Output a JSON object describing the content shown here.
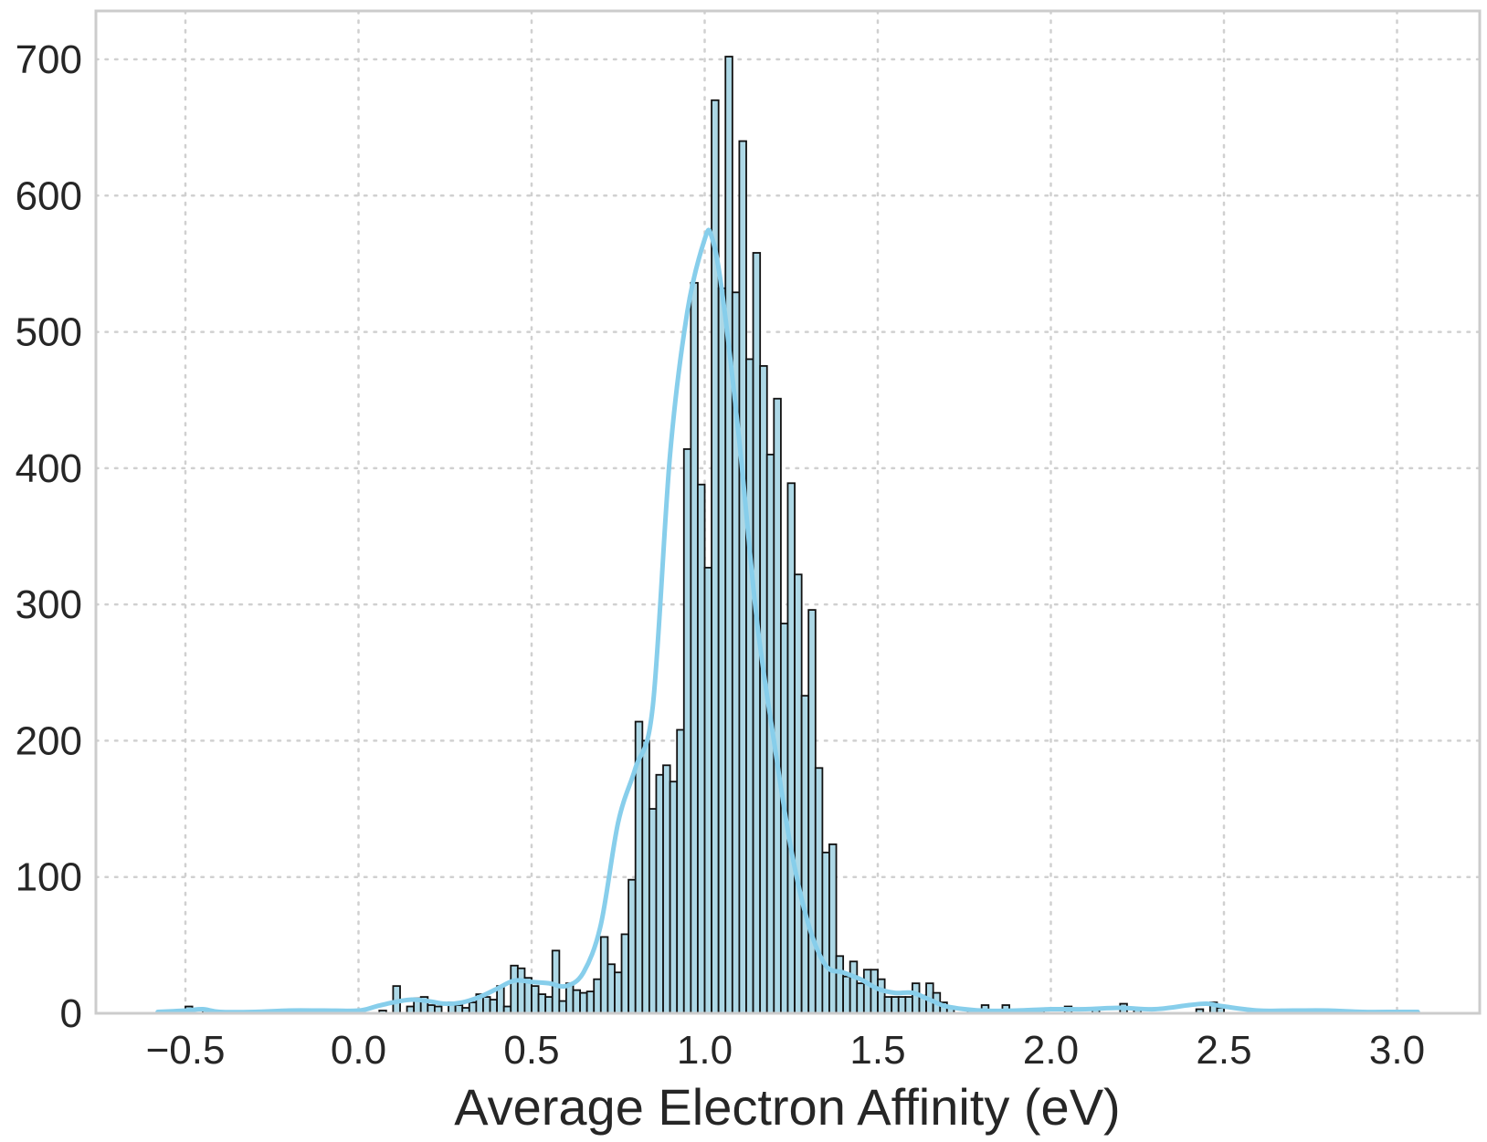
{
  "chart_data": {
    "type": "histogram",
    "xlabel": "Average Electron Affinity (eV)",
    "ylabel": "",
    "xlim": [
      -0.6,
      3.1
    ],
    "ylim": [
      0,
      700
    ],
    "xticks": [
      "−0.5",
      "0.0",
      "0.5",
      "1.0",
      "1.5",
      "2.0",
      "2.5",
      "3.0"
    ],
    "xtick_values": [
      -0.5,
      0.0,
      0.5,
      1.0,
      1.5,
      2.0,
      2.5,
      3.0
    ],
    "yticks": [
      "0",
      "100",
      "200",
      "300",
      "400",
      "500",
      "600",
      "700"
    ],
    "ytick_values": [
      0,
      100,
      200,
      300,
      400,
      500,
      600,
      700
    ],
    "grid": true,
    "bin_width": 0.0201,
    "bins": [
      {
        "x": -0.5,
        "count": 5
      },
      {
        "x": -0.45,
        "count": 3
      },
      {
        "x": 0.06,
        "count": 2
      },
      {
        "x": 0.1,
        "count": 20
      },
      {
        "x": 0.14,
        "count": 5
      },
      {
        "x": 0.16,
        "count": 11
      },
      {
        "x": 0.18,
        "count": 12
      },
      {
        "x": 0.2,
        "count": 6
      },
      {
        "x": 0.22,
        "count": 5
      },
      {
        "x": 0.26,
        "count": 8
      },
      {
        "x": 0.28,
        "count": 6
      },
      {
        "x": 0.3,
        "count": 4
      },
      {
        "x": 0.32,
        "count": 8
      },
      {
        "x": 0.34,
        "count": 14
      },
      {
        "x": 0.36,
        "count": 12
      },
      {
        "x": 0.38,
        "count": 10
      },
      {
        "x": 0.4,
        "count": 20
      },
      {
        "x": 0.42,
        "count": 5
      },
      {
        "x": 0.44,
        "count": 35
      },
      {
        "x": 0.46,
        "count": 33
      },
      {
        "x": 0.48,
        "count": 26
      },
      {
        "x": 0.5,
        "count": 20
      },
      {
        "x": 0.52,
        "count": 14
      },
      {
        "x": 0.54,
        "count": 12
      },
      {
        "x": 0.56,
        "count": 46
      },
      {
        "x": 0.58,
        "count": 9
      },
      {
        "x": 0.6,
        "count": 22
      },
      {
        "x": 0.62,
        "count": 17
      },
      {
        "x": 0.64,
        "count": 15
      },
      {
        "x": 0.66,
        "count": 16
      },
      {
        "x": 0.68,
        "count": 25
      },
      {
        "x": 0.7,
        "count": 56
      },
      {
        "x": 0.72,
        "count": 36
      },
      {
        "x": 0.74,
        "count": 30
      },
      {
        "x": 0.76,
        "count": 58
      },
      {
        "x": 0.78,
        "count": 98
      },
      {
        "x": 0.8,
        "count": 214
      },
      {
        "x": 0.82,
        "count": 200
      },
      {
        "x": 0.84,
        "count": 150
      },
      {
        "x": 0.86,
        "count": 175
      },
      {
        "x": 0.88,
        "count": 182
      },
      {
        "x": 0.9,
        "count": 170
      },
      {
        "x": 0.92,
        "count": 208
      },
      {
        "x": 0.94,
        "count": 414
      },
      {
        "x": 0.96,
        "count": 536
      },
      {
        "x": 0.98,
        "count": 388
      },
      {
        "x": 1.0,
        "count": 327
      },
      {
        "x": 1.02,
        "count": 670
      },
      {
        "x": 1.04,
        "count": 532
      },
      {
        "x": 1.06,
        "count": 702
      },
      {
        "x": 1.08,
        "count": 529
      },
      {
        "x": 1.1,
        "count": 640
      },
      {
        "x": 1.12,
        "count": 480
      },
      {
        "x": 1.14,
        "count": 558
      },
      {
        "x": 1.16,
        "count": 475
      },
      {
        "x": 1.18,
        "count": 410
      },
      {
        "x": 1.2,
        "count": 451
      },
      {
        "x": 1.22,
        "count": 286
      },
      {
        "x": 1.24,
        "count": 389
      },
      {
        "x": 1.26,
        "count": 322
      },
      {
        "x": 1.28,
        "count": 233
      },
      {
        "x": 1.3,
        "count": 296
      },
      {
        "x": 1.32,
        "count": 180
      },
      {
        "x": 1.34,
        "count": 118
      },
      {
        "x": 1.36,
        "count": 124
      },
      {
        "x": 1.38,
        "count": 42
      },
      {
        "x": 1.4,
        "count": 27
      },
      {
        "x": 1.42,
        "count": 38
      },
      {
        "x": 1.44,
        "count": 22
      },
      {
        "x": 1.46,
        "count": 32
      },
      {
        "x": 1.48,
        "count": 32
      },
      {
        "x": 1.5,
        "count": 25
      },
      {
        "x": 1.52,
        "count": 12
      },
      {
        "x": 1.54,
        "count": 12
      },
      {
        "x": 1.56,
        "count": 12
      },
      {
        "x": 1.58,
        "count": 12
      },
      {
        "x": 1.6,
        "count": 22
      },
      {
        "x": 1.62,
        "count": 13
      },
      {
        "x": 1.64,
        "count": 22
      },
      {
        "x": 1.66,
        "count": 15
      },
      {
        "x": 1.68,
        "count": 8
      },
      {
        "x": 1.7,
        "count": 4
      },
      {
        "x": 1.76,
        "count": 3
      },
      {
        "x": 1.8,
        "count": 6
      },
      {
        "x": 1.86,
        "count": 6
      },
      {
        "x": 1.96,
        "count": 2
      },
      {
        "x": 2.04,
        "count": 5
      },
      {
        "x": 2.12,
        "count": 3
      },
      {
        "x": 2.2,
        "count": 7
      },
      {
        "x": 2.24,
        "count": 4
      },
      {
        "x": 2.42,
        "count": 3
      },
      {
        "x": 2.46,
        "count": 8
      },
      {
        "x": 2.48,
        "count": 4
      }
    ],
    "kde": {
      "x": [
        -0.58,
        -0.5,
        -0.45,
        -0.4,
        -0.3,
        -0.2,
        -0.1,
        0.0,
        0.05,
        0.1,
        0.15,
        0.2,
        0.25,
        0.3,
        0.35,
        0.4,
        0.45,
        0.5,
        0.55,
        0.6,
        0.65,
        0.7,
        0.75,
        0.8,
        0.85,
        0.9,
        0.95,
        1.0,
        1.02,
        1.05,
        1.1,
        1.15,
        1.2,
        1.25,
        1.3,
        1.35,
        1.4,
        1.45,
        1.5,
        1.55,
        1.6,
        1.65,
        1.7,
        1.8,
        1.9,
        2.0,
        2.1,
        2.2,
        2.3,
        2.4,
        2.45,
        2.5,
        2.6,
        2.7,
        2.8,
        2.9,
        3.0,
        3.06
      ],
      "y": [
        1,
        2,
        3,
        1,
        1,
        2,
        2,
        2,
        5,
        8,
        10,
        9,
        7,
        8,
        12,
        18,
        24,
        23,
        22,
        20,
        30,
        65,
        140,
        180,
        225,
        410,
        515,
        568,
        570,
        530,
        420,
        290,
        200,
        120,
        65,
        35,
        30,
        25,
        18,
        15,
        15,
        10,
        5,
        2,
        2,
        3,
        3,
        4,
        3,
        6,
        7,
        5,
        2,
        2,
        2,
        1,
        1,
        1
      ]
    }
  }
}
